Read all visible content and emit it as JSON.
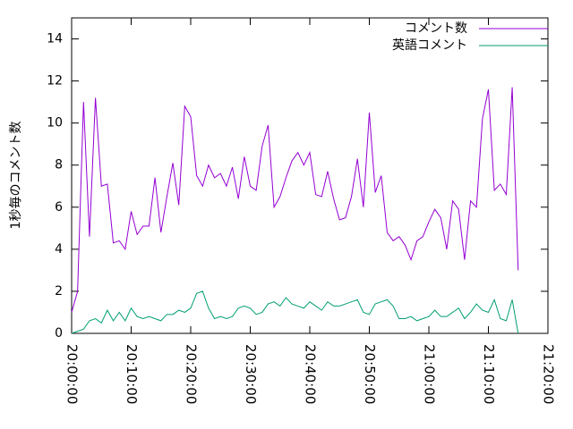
{
  "chart_data": {
    "type": "line",
    "ylabel": "1秒毎のコメント数",
    "x": [
      "20:00:00",
      "20:01:00",
      "20:02:00",
      "20:03:00",
      "20:04:00",
      "20:05:00",
      "20:06:00",
      "20:07:00",
      "20:08:00",
      "20:09:00",
      "20:10:00",
      "20:11:00",
      "20:12:00",
      "20:13:00",
      "20:14:00",
      "20:15:00",
      "20:16:00",
      "20:17:00",
      "20:18:00",
      "20:19:00",
      "20:20:00",
      "20:21:00",
      "20:22:00",
      "20:23:00",
      "20:24:00",
      "20:25:00",
      "20:26:00",
      "20:27:00",
      "20:28:00",
      "20:29:00",
      "20:30:00",
      "20:31:00",
      "20:32:00",
      "20:33:00",
      "20:34:00",
      "20:35:00",
      "20:36:00",
      "20:37:00",
      "20:38:00",
      "20:39:00",
      "20:40:00",
      "20:41:00",
      "20:42:00",
      "20:43:00",
      "20:44:00",
      "20:45:00",
      "20:46:00",
      "20:47:00",
      "20:48:00",
      "20:49:00",
      "20:50:00",
      "20:51:00",
      "20:52:00",
      "20:53:00",
      "20:54:00",
      "20:55:00",
      "20:56:00",
      "20:57:00",
      "20:58:00",
      "20:59:00",
      "21:00:00",
      "21:01:00",
      "21:02:00",
      "21:03:00",
      "21:04:00",
      "21:05:00",
      "21:06:00",
      "21:07:00",
      "21:08:00",
      "21:09:00",
      "21:10:00",
      "21:11:00",
      "21:12:00",
      "21:13:00",
      "21:14:00",
      "21:15:00"
    ],
    "series": [
      {
        "name": "コメント数",
        "color": "#9400d3",
        "values": [
          1.0,
          2.0,
          11.0,
          4.6,
          11.2,
          7.0,
          7.1,
          4.3,
          4.4,
          4.0,
          5.8,
          4.7,
          5.1,
          5.1,
          7.4,
          4.8,
          6.5,
          8.1,
          6.1,
          10.8,
          10.3,
          7.5,
          7.0,
          8.0,
          7.4,
          7.6,
          7.0,
          7.9,
          6.4,
          8.4,
          7.0,
          6.8,
          8.9,
          9.9,
          6.0,
          6.5,
          7.4,
          8.2,
          8.6,
          8.0,
          8.6,
          6.6,
          6.5,
          7.7,
          6.4,
          5.4,
          5.5,
          6.5,
          8.3,
          6.0,
          10.5,
          6.7,
          7.5,
          4.8,
          4.4,
          4.6,
          4.2,
          3.5,
          4.4,
          4.6,
          5.3,
          5.9,
          5.5,
          4.0,
          6.3,
          5.9,
          3.5,
          6.3,
          6.0,
          10.2,
          11.6,
          6.8,
          7.1,
          6.6,
          11.7,
          3.0
        ]
      },
      {
        "name": "英語コメント",
        "color": "#009e73",
        "values": [
          0.0,
          0.1,
          0.2,
          0.6,
          0.7,
          0.5,
          1.1,
          0.6,
          1.0,
          0.6,
          1.2,
          0.8,
          0.7,
          0.8,
          0.7,
          0.6,
          0.9,
          0.9,
          1.1,
          1.0,
          1.2,
          1.9,
          2.0,
          1.2,
          0.7,
          0.8,
          0.7,
          0.8,
          1.2,
          1.3,
          1.2,
          0.9,
          1.0,
          1.4,
          1.5,
          1.3,
          1.7,
          1.4,
          1.3,
          1.2,
          1.5,
          1.3,
          1.1,
          1.5,
          1.3,
          1.3,
          1.4,
          1.5,
          1.6,
          1.0,
          0.9,
          1.4,
          1.5,
          1.6,
          1.3,
          0.7,
          0.7,
          0.8,
          0.6,
          0.7,
          0.8,
          1.1,
          0.8,
          0.8,
          1.0,
          1.2,
          0.7,
          1.0,
          1.4,
          1.1,
          1.0,
          1.6,
          0.7,
          0.6,
          1.6,
          0.0
        ]
      }
    ],
    "xlim": [
      "20:00:00",
      "21:20:00"
    ],
    "xticks": [
      "20:00:00",
      "20:10:00",
      "20:20:00",
      "20:30:00",
      "20:40:00",
      "20:50:00",
      "21:00:00",
      "21:10:00",
      "21:20:00"
    ],
    "ylim": [
      0,
      15
    ],
    "yticks": [
      0,
      2,
      4,
      6,
      8,
      10,
      12,
      14
    ],
    "grid": false,
    "legend": "top-right"
  }
}
